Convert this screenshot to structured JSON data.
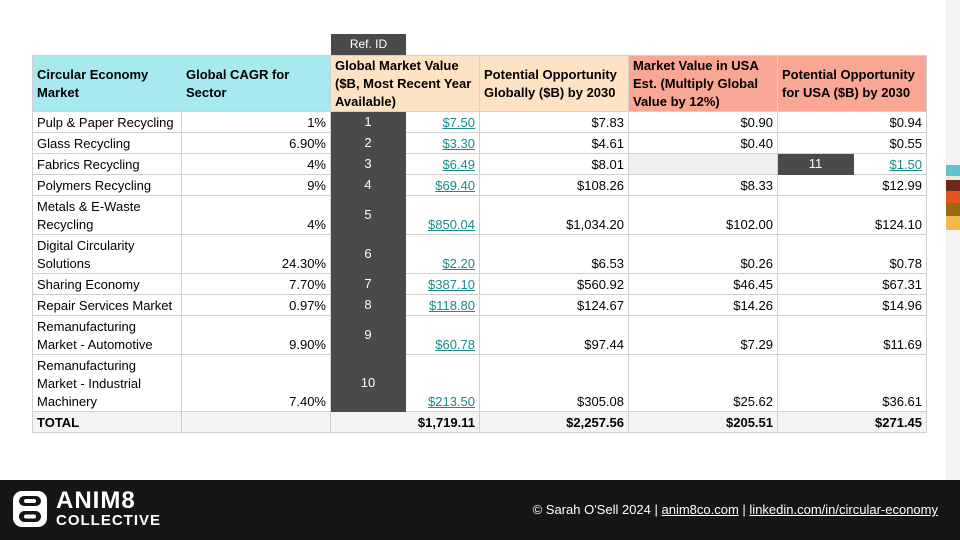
{
  "ref_header": "Ref. ID",
  "headers": {
    "market": "Circular Economy Market",
    "cagr": "Global CAGR for Sector",
    "global_value": "Global Market Value ($B, Most Recent Year Available)",
    "global_opportunity": "Potential Opportunity Globally ($B) by 2030",
    "usa_value": "Market Value in USA Est. (Multiply Global Value by 12%)",
    "usa_opportunity": "Potential Opportunity for USA ($B) by 2030"
  },
  "rows": [
    {
      "market": "Pulp & Paper Recycling",
      "cagr": "1%",
      "ref": "1",
      "global_value": "$7.50",
      "global_opportunity": "$7.83",
      "usa_value": "$0.90",
      "usa_opportunity": "$0.94"
    },
    {
      "market": "Glass Recycling",
      "cagr": "6.90%",
      "ref": "2",
      "global_value": "$3.30",
      "global_opportunity": "$4.61",
      "usa_value": "$0.40",
      "usa_opportunity": "$0.55"
    },
    {
      "market": "Fabrics Recycling",
      "cagr": "4%",
      "ref": "3",
      "global_value": "$6.49",
      "global_opportunity": "$8.01",
      "usa_value": "",
      "usa_ref": "11",
      "usa_opportunity": "$1.50"
    },
    {
      "market": "Polymers Recycling",
      "cagr": "9%",
      "ref": "4",
      "global_value": "$69.40",
      "global_opportunity": "$108.26",
      "usa_value": "$8.33",
      "usa_opportunity": "$12.99"
    },
    {
      "market": "Metals & E-Waste Recycling",
      "cagr": "4%",
      "ref": "5",
      "global_value": "$850.04",
      "global_opportunity": "$1,034.20",
      "usa_value": "$102.00",
      "usa_opportunity": "$124.10"
    },
    {
      "market": "Digital Circularity Solutions",
      "cagr": "24.30%",
      "ref": "6",
      "global_value": "$2.20",
      "global_opportunity": "$6.53",
      "usa_value": "$0.26",
      "usa_opportunity": "$0.78"
    },
    {
      "market": "Sharing Economy",
      "cagr": "7.70%",
      "ref": "7",
      "global_value": "$387.10",
      "global_opportunity": "$560.92",
      "usa_value": "$46.45",
      "usa_opportunity": "$67.31"
    },
    {
      "market": "Repair Services Market",
      "cagr": "0.97%",
      "ref": "8",
      "global_value": "$118.80",
      "global_opportunity": "$124.67",
      "usa_value": "$14.26",
      "usa_opportunity": "$14.96"
    },
    {
      "market": "Remanufacturing Market - Automotive",
      "cagr": "9.90%",
      "ref": "9",
      "global_value": "$60.78",
      "global_opportunity": "$97.44",
      "usa_value": "$7.29",
      "usa_opportunity": "$11.69"
    },
    {
      "market": "Remanufacturing Market - Industrial Machinery",
      "cagr": "7.40%",
      "ref": "10",
      "global_value": "$213.50",
      "global_opportunity": "$305.08",
      "usa_value": "$25.62",
      "usa_opportunity": "$36.61"
    }
  ],
  "total": {
    "label": "TOTAL",
    "global_value": "$1,719.11",
    "global_opportunity": "$2,257.56",
    "usa_value": "$205.51",
    "usa_opportunity": "$271.45"
  },
  "footer": {
    "logo_line1": "ANIM8",
    "logo_line2": "COLLECTIVE",
    "copyright": "© Sarah O'Sell 2024",
    "separator": " | ",
    "website": "anim8co.com",
    "linkedin": "linkedin.com/in/circular-economy"
  },
  "accent_colors": [
    "#5fc4cc",
    "#f2e7d8",
    "#6b2a1a",
    "#e8521e",
    "#9a6a12",
    "#f2b84b"
  ]
}
